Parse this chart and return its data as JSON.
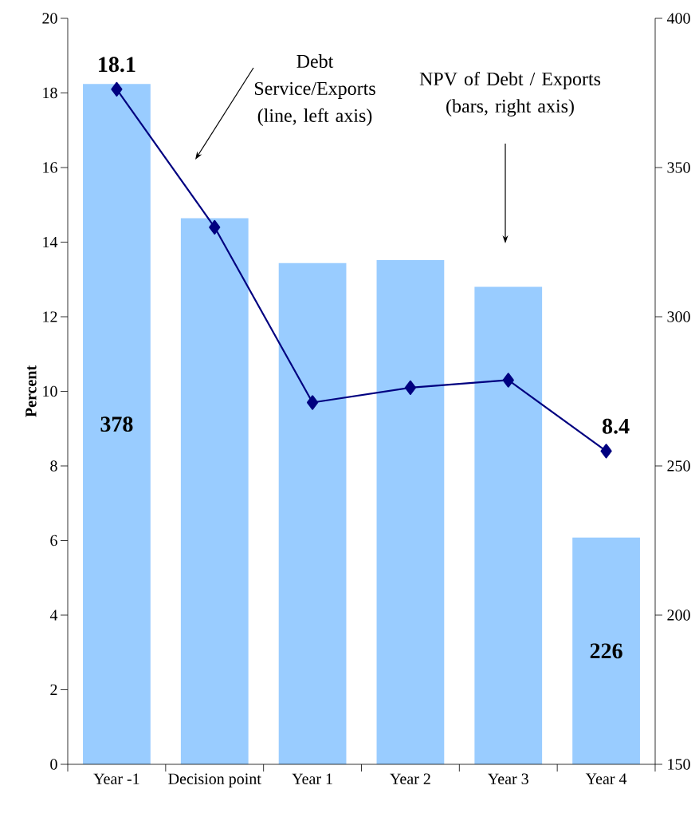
{
  "chart_data": {
    "type": "bar",
    "categories": [
      "Year -1",
      "Decision point",
      "Year 1",
      "Year 2",
      "Year 3",
      "Year 4"
    ],
    "series": [
      {
        "axis": "y2",
        "color": "#99ccff",
        "values": [
          378,
          333,
          318,
          319,
          310,
          226
        ],
        "value_labels": [
          "378",
          null,
          null,
          null,
          null,
          "226"
        ]
      },
      {
        "type": "line",
        "color": "#000080",
        "values": [
          18.1,
          14.4,
          9.7,
          10.1,
          10.3,
          8.4
        ],
        "value_labels": [
          "18.1",
          null,
          null,
          null,
          null,
          "8.4"
        ]
      }
    ],
    "ylabel": "Percent",
    "ylim": [
      0,
      20
    ],
    "yticks": [
      0,
      2,
      4,
      6,
      8,
      10,
      12,
      14,
      16,
      18,
      20
    ],
    "y2lim": [
      150,
      400
    ],
    "y2ticks": [
      150,
      200,
      250,
      300,
      350,
      400
    ],
    "annotations": [
      "Debt Service/Exports (line, left axis)",
      "NPV of Debt / Exports (bars, right axis)"
    ],
    "grid": false,
    "marker": "diamond",
    "line_style": "solid"
  }
}
